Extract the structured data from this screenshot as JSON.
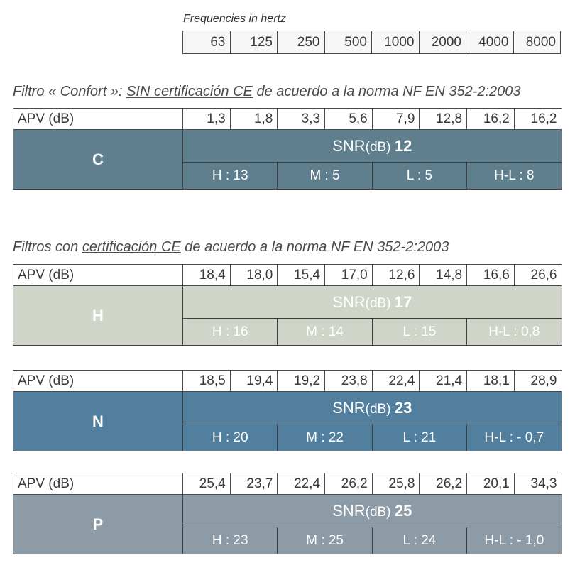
{
  "freq_caption": "Frequencies in hertz",
  "frequencies": [
    "63",
    "125",
    "250",
    "500",
    "1000",
    "2000",
    "4000",
    "8000"
  ],
  "section1": {
    "prefix": "Filtro « Confort »: ",
    "underlined": "SIN certificación CE",
    "suffix": " de acuerdo a la norma NF EN 352-2:2003"
  },
  "section2": {
    "prefix": "Filtros con ",
    "underlined": "certificación CE",
    "suffix": " de acuerdo a la norma NF EN 352-2:2003"
  },
  "filters": [
    {
      "name": "C",
      "apv_label": "APV (dB)",
      "apv": [
        "1,3",
        "1,8",
        "3,3",
        "5,6",
        "7,9",
        "12,8",
        "16,2",
        "16,2"
      ],
      "snr_label": "SNR",
      "snr_unit": "(dB) ",
      "snr_value": "12",
      "h": "H : 13",
      "m": "M : 5",
      "l": "L : 5",
      "hl": "H-L : 8",
      "color": "#5f7f8f"
    },
    {
      "name": "H",
      "apv_label": "APV (dB)",
      "apv": [
        "18,4",
        "18,0",
        "15,4",
        "17,0",
        "12,6",
        "14,8",
        "16,6",
        "26,6"
      ],
      "snr_label": "SNR",
      "snr_unit": "(dB) ",
      "snr_value": "17",
      "h": "H : 16",
      "m": "M : 14",
      "l": "L : 15",
      "hl": "H-L : 0,8",
      "color": "#cfd5c8"
    },
    {
      "name": "N",
      "apv_label": "APV (dB)",
      "apv": [
        "18,5",
        "19,4",
        "19,2",
        "23,8",
        "22,4",
        "21,4",
        "18,1",
        "28,9"
      ],
      "snr_label": "SNR",
      "snr_unit": "(dB) ",
      "snr_value": "23",
      "h": "H : 20",
      "m": "M : 22",
      "l": "L : 21",
      "hl": "H-L : - 0,7",
      "color": "#527f9e"
    },
    {
      "name": "P",
      "apv_label": "APV (dB)",
      "apv": [
        "25,4",
        "23,7",
        "22,4",
        "26,2",
        "25,8",
        "26,2",
        "20,1",
        "34,3"
      ],
      "snr_label": "SNR",
      "snr_unit": "(dB) ",
      "snr_value": "25",
      "h": "H : 23",
      "m": "M : 25",
      "l": "L : 24",
      "hl": "H-L : - 1,0",
      "color": "#8d9ba6"
    }
  ]
}
